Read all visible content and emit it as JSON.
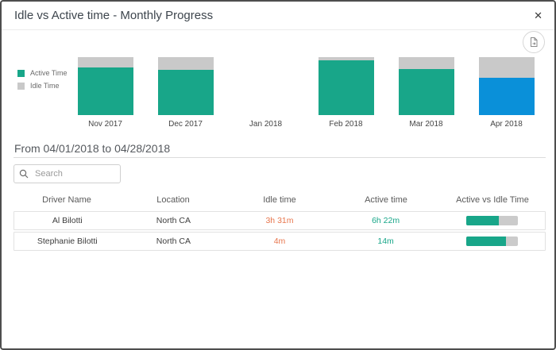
{
  "dialog": {
    "title": "Idle vs Active time - Monthly Progress"
  },
  "icons": {
    "close": "✕",
    "search": "magnifier",
    "export": "export-report"
  },
  "chart_data": {
    "type": "bar",
    "stacked": true,
    "unit": "percent",
    "title": "",
    "xlabel": "",
    "ylabel": "",
    "ylim": [
      0,
      100
    ],
    "axes_visible": false,
    "grid": false,
    "legend_position": "left",
    "legend": [
      {
        "label": "Active Time",
        "color": "#18a689"
      },
      {
        "label": "Idle Time",
        "color": "#c9c9c9"
      }
    ],
    "categories": [
      "Nov 2017",
      "Dec 2017",
      "Jan 2018",
      "Feb 2018",
      "Mar 2018",
      "Apr 2018"
    ],
    "series": [
      {
        "name": "Active Time",
        "values": [
          82,
          78,
          0,
          95,
          79,
          65
        ]
      },
      {
        "name": "Idle Time",
        "values": [
          18,
          22,
          0,
          5,
          21,
          35
        ]
      }
    ],
    "selected_category": "Apr 2018",
    "colors": {
      "active": "#18a689",
      "idle": "#c9c9c9",
      "selected_active": "#0a90d9"
    }
  },
  "period": {
    "label": "From 04/01/2018 to 04/28/2018"
  },
  "search": {
    "placeholder": "Search"
  },
  "table": {
    "columns": [
      "Driver Name",
      "Location",
      "Idle time",
      "Active time",
      "Active vs Idle Time"
    ],
    "value_colors": {
      "idle_text": "#e8764d",
      "active_text": "#18a689",
      "bar_fill": "#18a689",
      "bar_track": "#cbcbcb"
    },
    "rows": [
      {
        "driver_name": "Al Bilotti",
        "location": "North CA",
        "idle_time": "3h 31m",
        "active_time": "6h 22m",
        "active_pct": 64
      },
      {
        "driver_name": "Stephanie Bilotti",
        "location": "North CA",
        "idle_time": "4m",
        "active_time": "14m",
        "active_pct": 78
      }
    ]
  }
}
